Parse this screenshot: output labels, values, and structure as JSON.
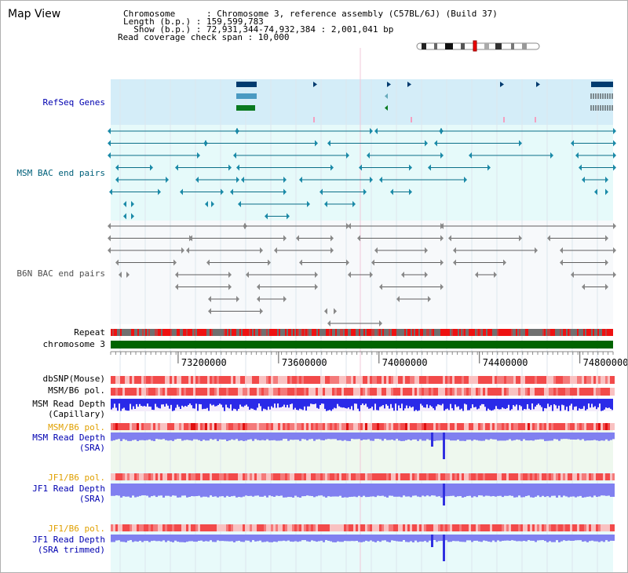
{
  "title": "Map View",
  "header": {
    "line1": "Chromosome      : Chromosome 3, reference assembly (C57BL/6J) (Build 37)",
    "line2": "Length (b.p.) : 159,599,783",
    "line3": "  Show (b.p.) : 72,931,344-74,932,384 : 2,001,041 bp",
    "line4": "Read coverage check span : 10,000"
  },
  "tracks": {
    "refseq": "RefSeq Genes",
    "msm_bac": "MSM BAC end pairs",
    "b6n_bac": "B6N BAC end pairs",
    "repeat": "Repeat",
    "chromosome": "chromosome 3",
    "dbsnp": "dbSNP(Mouse)",
    "msm_b6_pol_1": "MSM/B6 pol.",
    "msm_read_depth_cap_1": "MSM Read Depth",
    "msm_read_depth_cap_2": "(Capillary)",
    "msm_b6_pol_2": "MSM/B6 pol.",
    "msm_read_depth_sra_1": "MSM Read Depth",
    "msm_read_depth_sra_2": "(SRA)",
    "jf1_b6_pol_1": "JF1/B6 pol.",
    "jf1_read_depth_sra_1": "JF1 Read Depth",
    "jf1_read_depth_sra_2": "(SRA)",
    "jf1_b6_pol_2": "JF1/B6 pol.",
    "jf1_read_depth_trim_1": "JF1 Read Depth",
    "jf1_read_depth_trim_2": "(SRA trimmed)"
  },
  "axis": {
    "ticks": [
      "73200000",
      "73600000",
      "74000000",
      "74400000",
      "74800000"
    ],
    "tick_values": [
      73200000,
      73600000,
      74000000,
      74400000,
      74800000
    ],
    "range": [
      72931344,
      74932384
    ]
  },
  "colors": {
    "refseq_bg": "#d4edf8",
    "msm_bg": "#e6fafa",
    "b6n_bg": "#f7f9fb",
    "chromosome": "#006400",
    "repeat_red": "#ee1111",
    "repeat_gray": "#707070",
    "depth_blue": "#2a2ae8",
    "depth_light": "#8080f0",
    "pol_red": "#f24a4a",
    "pol_light": "#f9c2c2",
    "accent_blue": "#0000b0",
    "accent_orange": "#e0a000"
  }
}
